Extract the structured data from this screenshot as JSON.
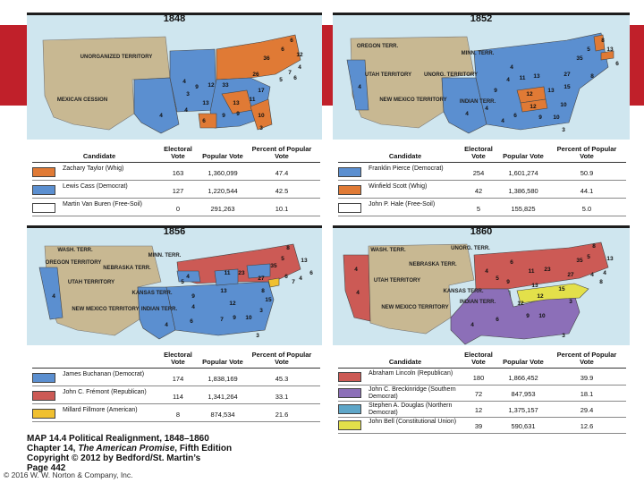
{
  "colors": {
    "democrat": "#5b8fd0",
    "whig": "#e07a35",
    "free_soil": "#4f7fc4",
    "republican": "#cc5a55",
    "american": "#f0c030",
    "southern_democrat": "#8c6fb8",
    "northern_democrat": "#5ea6c8",
    "constitutional_union": "#e3e04a",
    "territory": "#c8b892",
    "water": "#cfe6ef"
  },
  "maps": [
    {
      "year": "1848",
      "territory_labels": [
        "UNORGANIZED TERRITORY",
        "MEXICAN CESSION"
      ],
      "electoral_numbers": [
        "4",
        "9",
        "12",
        "33",
        "36",
        "6",
        "12",
        "6",
        "4",
        "7",
        "6",
        "5",
        "26",
        "13",
        "17",
        "3",
        "11",
        "13",
        "4",
        "9",
        "9",
        "6",
        "10",
        "4",
        "3"
      ],
      "table": {
        "headers": {
          "candidate": "Candidate",
          "electoral": "Electoral Vote",
          "popular": "Popular Vote",
          "percent": "Percent of Popular Vote"
        },
        "rows": [
          {
            "candidate": "Zachary Taylor (Whig)",
            "electoral": "163",
            "popular": "1,360,099",
            "percent": "47.4",
            "color": "#e07a35"
          },
          {
            "candidate": "Lewis Cass (Democrat)",
            "electoral": "127",
            "popular": "1,220,544",
            "percent": "42.5",
            "color": "#5b8fd0"
          },
          {
            "candidate": "Martin Van Buren (Free-Soil)",
            "electoral": "0",
            "popular": "291,263",
            "percent": "10.1",
            "color": "#ffffff"
          }
        ]
      }
    },
    {
      "year": "1852",
      "territory_labels": [
        "OREGON TERR.",
        "MINN. TERR.",
        "UTAH TERRITORY",
        "UNORG. TERRITORY",
        "NEW MEXICO TERRITORY",
        "INDIAN TERR."
      ],
      "electoral_numbers": [
        "4",
        "4",
        "5",
        "13",
        "8",
        "6",
        "4",
        "11",
        "13",
        "35",
        "27",
        "9",
        "13",
        "12",
        "8",
        "4",
        "12",
        "15",
        "6",
        "4",
        "9",
        "10",
        "10",
        "4",
        "3"
      ],
      "table": {
        "headers": {
          "candidate": "Candidate",
          "electoral": "Electoral Vote",
          "popular": "Popular Vote",
          "percent": "Percent of Popular Vote"
        },
        "rows": [
          {
            "candidate": "Franklin Pierce (Democrat)",
            "electoral": "254",
            "popular": "1,601,274",
            "percent": "50.9",
            "color": "#5b8fd0"
          },
          {
            "candidate": "Winfield Scott (Whig)",
            "electoral": "42",
            "popular": "1,386,580",
            "percent": "44.1",
            "color": "#e07a35"
          },
          {
            "candidate": "John P. Hale (Free-Soil)",
            "electoral": "5",
            "popular": "155,825",
            "percent": "5.0",
            "color": "#ffffff"
          }
        ]
      }
    },
    {
      "year": "1856",
      "territory_labels": [
        "WASH. TERR.",
        "OREGON TERRITORY",
        "MINN. TERR.",
        "NEBRASKA TERR.",
        "UTAH TERRITORY",
        "KANSAS TERR.",
        "NEW MEXICO TERRITORY",
        "INDIAN TERR."
      ],
      "electoral_numbers": [
        "4",
        "8",
        "5",
        "13",
        "6",
        "4",
        "5",
        "11",
        "23",
        "35",
        "27",
        "6",
        "7",
        "4",
        "9",
        "13",
        "8",
        "4",
        "12",
        "15",
        "3",
        "6",
        "7",
        "9",
        "10",
        "4",
        "3"
      ],
      "table": {
        "headers": {
          "candidate": "Candidate",
          "electoral": "Electoral Vote",
          "popular": "Popular Vote",
          "percent": "Percent of Popular Vote"
        },
        "rows": [
          {
            "candidate": "James Buchanan (Democrat)",
            "electoral": "174",
            "popular": "1,838,169",
            "percent": "45.3",
            "color": "#5b8fd0"
          },
          {
            "candidate": "John C. Frémont (Republican)",
            "electoral": "114",
            "popular": "1,341,264",
            "percent": "33.1",
            "color": "#cc5a55"
          },
          {
            "candidate": "Millard Fillmore (American)",
            "electoral": "8",
            "popular": "874,534",
            "percent": "21.6",
            "color": "#f0c030"
          }
        ]
      }
    },
    {
      "year": "1860",
      "territory_labels": [
        "WASH. TERR.",
        "UNORG. TERR.",
        "NEBRASKA TERR.",
        "UTAH TERRITORY",
        "KANSAS TERR.",
        "INDIAN TERR.",
        "NEW MEXICO TERRITORY"
      ],
      "electoral_numbers": [
        "4",
        "8",
        "5",
        "13",
        "4",
        "4",
        "6",
        "11",
        "23",
        "35",
        "27",
        "4",
        "5",
        "9",
        "13",
        "12",
        "15",
        "12",
        "3",
        "6",
        "9",
        "10",
        "4",
        "4",
        "8",
        "3"
      ],
      "table": {
        "headers": {
          "candidate": "Candidate",
          "electoral": "Electoral Vote",
          "popular": "Popular Vote",
          "percent": "Percent of Popular Vote"
        },
        "rows": [
          {
            "candidate": "Abraham Lincoln (Republican)",
            "electoral": "180",
            "popular": "1,866,452",
            "percent": "39.9",
            "color": "#cc5a55"
          },
          {
            "candidate": "John C. Breckinridge (Southern Democrat)",
            "electoral": "72",
            "popular": "847,953",
            "percent": "18.1",
            "color": "#8c6fb8"
          },
          {
            "candidate": "Stephen A. Douglas (Northern Democrat)",
            "electoral": "12",
            "popular": "1,375,157",
            "percent": "29.4",
            "color": "#5ea6c8"
          },
          {
            "candidate": "John Bell (Constitutional Union)",
            "electoral": "39",
            "popular": "590,631",
            "percent": "12.6",
            "color": "#e3e04a"
          }
        ]
      }
    }
  ],
  "caption": {
    "line1": "MAP 14.4 Political Realignment, 1848–1860",
    "line2_pre": "Chapter 14, ",
    "line2_italic": "The American Promise",
    "line2_post": ", Fifth Edition",
    "line3": "Copyright © 2012 by Bedford/St. Martin’s",
    "line4": "Page 442"
  },
  "copyright": "© 2016 W. W. Norton & Company, Inc."
}
